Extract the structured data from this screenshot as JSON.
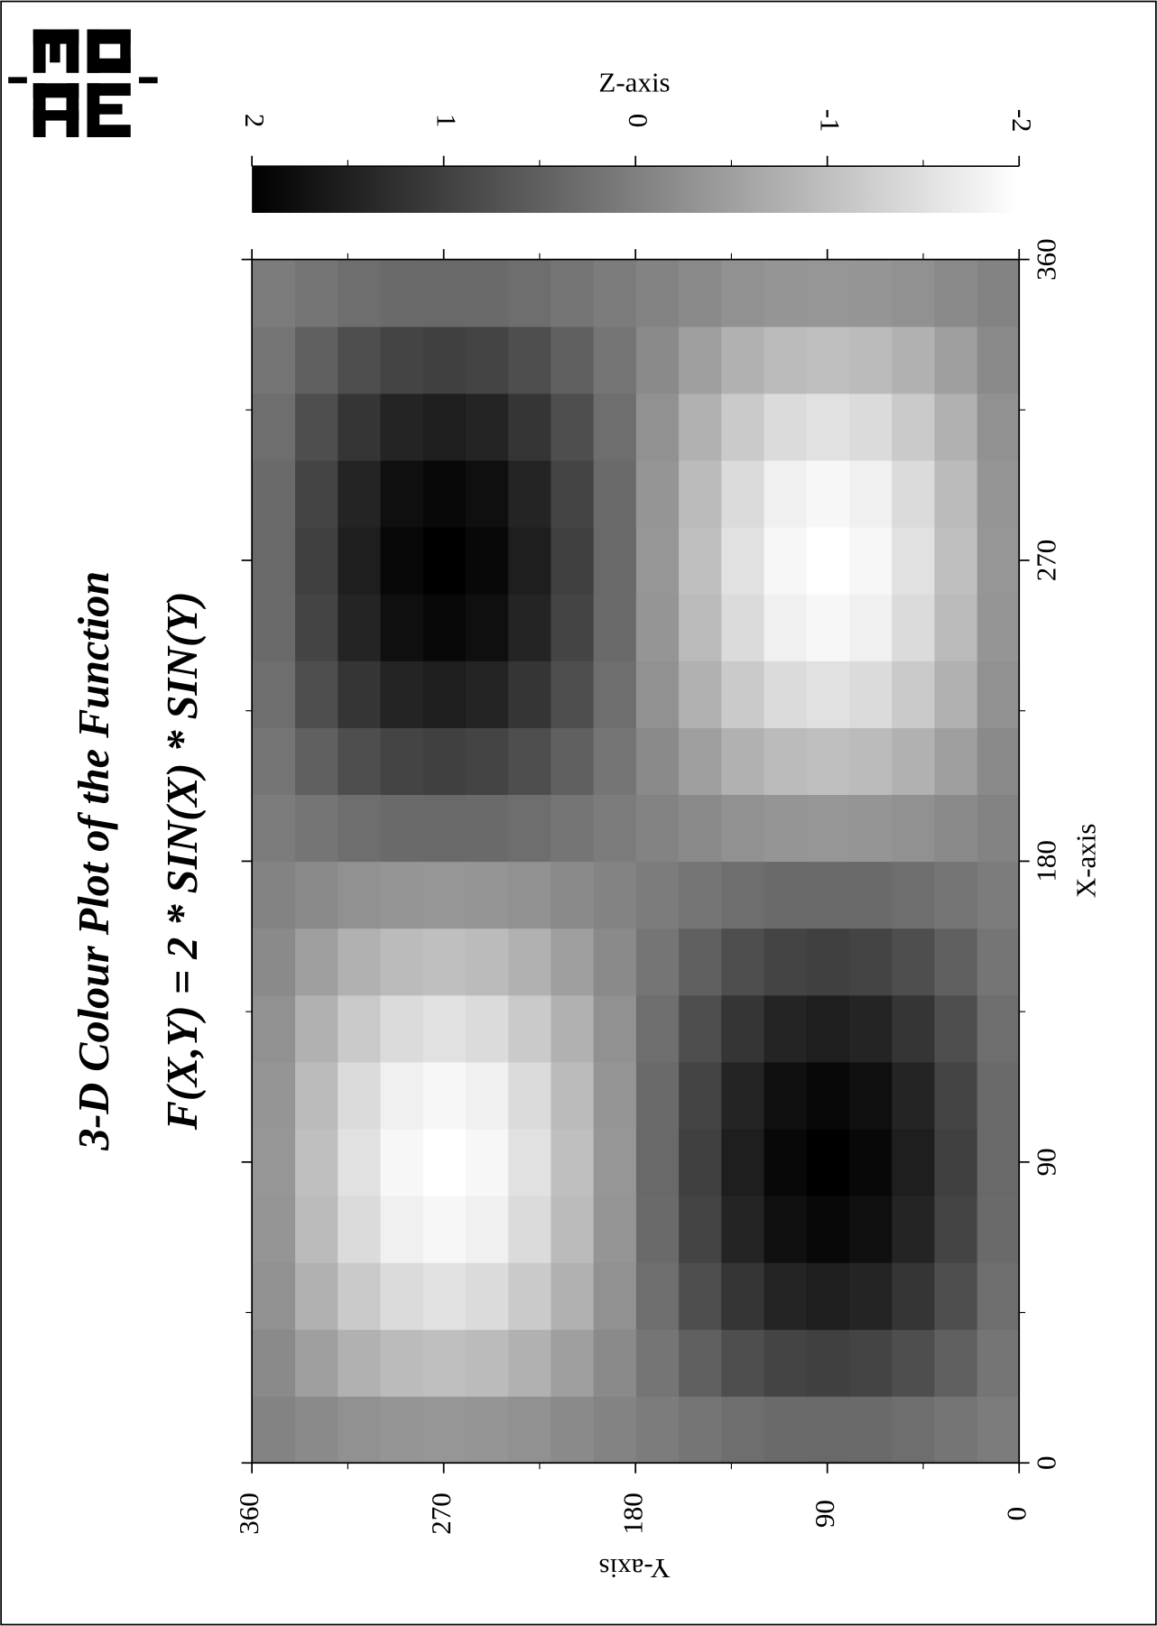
{
  "chart_data": {
    "type": "heatmap",
    "title": "3-D Colour Plot of the Function",
    "subtitle": "F(X,Y) = 2 * SIN(X) * SIN(Y)",
    "x_label": "X-axis",
    "y_label": "Y-axis",
    "z_label": "Z-axis",
    "x": [
      10,
      30,
      50,
      70,
      90,
      110,
      130,
      150,
      170,
      190,
      210,
      230,
      250,
      270,
      290,
      310,
      330,
      350
    ],
    "y": [
      10,
      30,
      50,
      70,
      90,
      110,
      130,
      150,
      170,
      190,
      210,
      230,
      250,
      270,
      290,
      310,
      330,
      350
    ],
    "z": [
      [
        0.06,
        0.17,
        0.27,
        0.33,
        0.35,
        0.33,
        0.27,
        0.17,
        0.06,
        -0.06,
        -0.17,
        -0.27,
        -0.33,
        -0.35,
        -0.33,
        -0.27,
        -0.17,
        -0.06
      ],
      [
        0.17,
        0.5,
        0.77,
        0.94,
        1,
        0.94,
        0.77,
        0.5,
        0.17,
        -0.17,
        -0.5,
        -0.77,
        -0.94,
        -1,
        -0.94,
        -0.77,
        -0.5,
        -0.17
      ],
      [
        0.27,
        0.77,
        1.17,
        1.44,
        1.53,
        1.44,
        1.17,
        0.77,
        0.27,
        -0.27,
        -0.77,
        -1.17,
        -1.44,
        -1.53,
        -1.44,
        -1.17,
        -0.77,
        -0.27
      ],
      [
        0.33,
        0.94,
        1.44,
        1.77,
        1.88,
        1.77,
        1.44,
        0.94,
        0.33,
        -0.33,
        -0.94,
        -1.44,
        -1.77,
        -1.88,
        -1.77,
        -1.44,
        -0.94,
        -0.33
      ],
      [
        0.35,
        1,
        1.53,
        1.88,
        2,
        1.88,
        1.53,
        1,
        0.35,
        -0.35,
        -1,
        -1.53,
        -1.88,
        -2,
        -1.88,
        -1.53,
        -1,
        -0.35
      ],
      [
        0.33,
        0.94,
        1.44,
        1.77,
        1.88,
        1.77,
        1.44,
        0.94,
        0.33,
        -0.33,
        -0.94,
        -1.44,
        -1.77,
        -1.88,
        -1.77,
        -1.44,
        -0.94,
        -0.33
      ],
      [
        0.27,
        0.77,
        1.17,
        1.44,
        1.53,
        1.44,
        1.17,
        0.77,
        0.27,
        -0.27,
        -0.77,
        -1.17,
        -1.44,
        -1.53,
        -1.44,
        -1.17,
        -0.77,
        -0.27
      ],
      [
        0.17,
        0.5,
        0.77,
        0.94,
        1,
        0.94,
        0.77,
        0.5,
        0.17,
        -0.17,
        -0.5,
        -0.77,
        -0.94,
        -1,
        -0.94,
        -0.77,
        -0.5,
        -0.17
      ],
      [
        0.06,
        0.17,
        0.27,
        0.33,
        0.35,
        0.33,
        0.27,
        0.17,
        0.06,
        -0.06,
        -0.17,
        -0.27,
        -0.33,
        -0.35,
        -0.33,
        -0.27,
        -0.17,
        -0.06
      ],
      [
        -0.06,
        -0.17,
        -0.27,
        -0.33,
        -0.35,
        -0.33,
        -0.27,
        -0.17,
        -0.06,
        0.06,
        0.17,
        0.27,
        0.33,
        0.35,
        0.33,
        0.27,
        0.17,
        0.06
      ],
      [
        -0.17,
        -0.5,
        -0.77,
        -0.94,
        -1,
        -0.94,
        -0.77,
        -0.5,
        -0.17,
        0.17,
        0.5,
        0.77,
        0.94,
        1,
        0.94,
        0.77,
        0.5,
        0.17
      ],
      [
        -0.27,
        -0.77,
        -1.17,
        -1.44,
        -1.53,
        -1.44,
        -1.17,
        -0.77,
        -0.27,
        0.27,
        0.77,
        1.17,
        1.44,
        1.53,
        1.44,
        1.17,
        0.77,
        0.27
      ],
      [
        -0.33,
        -0.94,
        -1.44,
        -1.77,
        -1.88,
        -1.77,
        -1.44,
        -0.94,
        -0.33,
        0.33,
        0.94,
        1.44,
        1.77,
        1.88,
        1.77,
        1.44,
        0.94,
        0.33
      ],
      [
        -0.35,
        -1,
        -1.53,
        -1.88,
        -2,
        -1.88,
        -1.53,
        -1,
        -0.35,
        0.35,
        1,
        1.53,
        1.88,
        2,
        1.88,
        1.53,
        1,
        0.35
      ],
      [
        -0.33,
        -0.94,
        -1.44,
        -1.77,
        -1.88,
        -1.77,
        -1.44,
        -0.94,
        -0.33,
        0.33,
        0.94,
        1.44,
        1.77,
        1.88,
        1.77,
        1.44,
        0.94,
        0.33
      ],
      [
        -0.27,
        -0.77,
        -1.17,
        -1.44,
        -1.53,
        -1.44,
        -1.17,
        -0.77,
        -0.27,
        0.27,
        0.77,
        1.17,
        1.44,
        1.53,
        1.44,
        1.17,
        0.77,
        0.27
      ],
      [
        -0.17,
        -0.5,
        -0.77,
        -0.94,
        -1,
        -0.94,
        -0.77,
        -0.5,
        -0.17,
        0.17,
        0.5,
        0.77,
        0.94,
        1,
        0.94,
        0.77,
        0.5,
        0.17
      ],
      [
        -0.06,
        -0.17,
        -0.27,
        -0.33,
        -0.35,
        -0.33,
        -0.27,
        -0.17,
        -0.06,
        0.06,
        0.17,
        0.27,
        0.33,
        0.35,
        0.33,
        0.27,
        0.17,
        0.06
      ]
    ],
    "xlim": [
      0,
      360
    ],
    "xticks": [
      0,
      90,
      180,
      270,
      360
    ],
    "xminorticks": [
      45,
      135,
      225,
      315
    ],
    "ylim": [
      0,
      360
    ],
    "yticks": [
      0,
      90,
      180,
      270,
      360
    ],
    "yminorticks": [
      45,
      135,
      225,
      315
    ],
    "zlim": [
      -2,
      2
    ],
    "zticks": [
      2,
      1,
      0,
      -1,
      -2
    ],
    "zminorticks": [
      1.5,
      0.5,
      -0.5,
      -1.5
    ],
    "colormap": [
      "#000000",
      "#ffffff"
    ]
  }
}
